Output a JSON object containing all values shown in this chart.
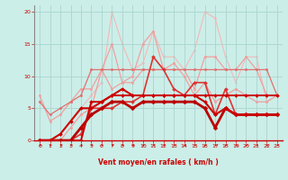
{
  "xlabel": "Vent moyen/en rafales ( km/h )",
  "bg_color": "#cceee8",
  "grid_color": "#aad4ce",
  "text_color": "#cc0000",
  "ylim": [
    0,
    21
  ],
  "xlim": [
    -0.5,
    23.5
  ],
  "yticks": [
    0,
    5,
    10,
    15,
    20
  ],
  "xticks": [
    0,
    1,
    2,
    3,
    4,
    5,
    6,
    7,
    8,
    9,
    10,
    11,
    12,
    13,
    14,
    15,
    16,
    17,
    18,
    19,
    20,
    21,
    22,
    23
  ],
  "series": [
    {
      "x": [
        0,
        1,
        2,
        3,
        4,
        5,
        6,
        7,
        8,
        9,
        10,
        11,
        12,
        13,
        14,
        15,
        16,
        17,
        18,
        19,
        20,
        21,
        22,
        23
      ],
      "y": [
        0,
        0,
        1,
        3,
        5,
        7,
        9,
        20,
        15,
        11,
        12,
        17,
        13,
        13,
        11,
        14,
        20,
        19,
        13,
        9,
        13,
        13,
        6,
        7
      ],
      "color": "#f4b8b8",
      "lw": 0.8,
      "marker": "o",
      "ms": 1.5,
      "zorder": 1
    },
    {
      "x": [
        0,
        1,
        2,
        3,
        4,
        5,
        6,
        7,
        8,
        9,
        10,
        11,
        12,
        13,
        14,
        15,
        16,
        17,
        18,
        19,
        20,
        21,
        22,
        23
      ],
      "y": [
        0,
        0,
        0,
        2,
        4,
        5,
        11,
        15,
        9,
        10,
        15,
        17,
        11,
        12,
        10,
        7,
        9,
        6,
        7,
        8,
        7,
        6,
        6,
        7
      ],
      "color": "#f0a0a0",
      "lw": 0.9,
      "marker": "o",
      "ms": 1.8,
      "zorder": 2
    },
    {
      "x": [
        0,
        1,
        2,
        3,
        4,
        5,
        6,
        7,
        8,
        9,
        10,
        11,
        12,
        13,
        14,
        15,
        16,
        17,
        18,
        19,
        20,
        21,
        22,
        23
      ],
      "y": [
        7,
        3,
        4,
        6,
        8,
        8,
        11,
        8,
        9,
        9,
        11,
        11,
        11,
        11,
        11,
        8,
        13,
        13,
        11,
        11,
        13,
        11,
        7,
        7
      ],
      "color": "#f0a0a0",
      "lw": 0.9,
      "marker": "o",
      "ms": 1.8,
      "zorder": 3
    },
    {
      "x": [
        0,
        1,
        2,
        3,
        4,
        5,
        6,
        7,
        8,
        9,
        10,
        11,
        12,
        13,
        14,
        15,
        16,
        17,
        18,
        19,
        20,
        21,
        22,
        23
      ],
      "y": [
        6,
        4,
        5,
        6,
        7,
        11,
        11,
        11,
        11,
        11,
        11,
        11,
        11,
        11,
        11,
        11,
        11,
        11,
        11,
        11,
        11,
        11,
        11,
        7
      ],
      "color": "#e07070",
      "lw": 0.9,
      "marker": "o",
      "ms": 1.8,
      "zorder": 4
    },
    {
      "x": [
        0,
        1,
        2,
        3,
        4,
        5,
        6,
        7,
        8,
        9,
        10,
        11,
        12,
        13,
        14,
        15,
        16,
        17,
        18,
        19,
        20,
        21,
        22,
        23
      ],
      "y": [
        0,
        0,
        0,
        0,
        1,
        5,
        5,
        5,
        6,
        6,
        7,
        13,
        11,
        8,
        7,
        9,
        9,
        4,
        8,
        4,
        4,
        4,
        4,
        4
      ],
      "color": "#dd3333",
      "lw": 1.2,
      "marker": "D",
      "ms": 2.0,
      "zorder": 5
    },
    {
      "x": [
        0,
        1,
        2,
        3,
        4,
        5,
        6,
        7,
        8,
        9,
        10,
        11,
        12,
        13,
        14,
        15,
        16,
        17,
        18,
        19,
        20,
        21,
        22,
        23
      ],
      "y": [
        0,
        0,
        0,
        0,
        0,
        6,
        6,
        7,
        7,
        7,
        7,
        7,
        7,
        7,
        7,
        7,
        7,
        7,
        7,
        7,
        7,
        7,
        7,
        7
      ],
      "color": "#cc0000",
      "lw": 1.4,
      "marker": "D",
      "ms": 2.0,
      "zorder": 6
    },
    {
      "x": [
        0,
        1,
        2,
        3,
        4,
        5,
        6,
        7,
        8,
        9,
        10,
        11,
        12,
        13,
        14,
        15,
        16,
        17,
        18,
        19,
        20,
        21,
        22,
        23
      ],
      "y": [
        0,
        0,
        0,
        0,
        2,
        4,
        5,
        6,
        6,
        5,
        6,
        6,
        6,
        6,
        6,
        6,
        5,
        2,
        5,
        4,
        4,
        4,
        4,
        4
      ],
      "color": "#bb0000",
      "lw": 2.0,
      "marker": "D",
      "ms": 2.5,
      "zorder": 7
    },
    {
      "x": [
        0,
        1,
        2,
        3,
        4,
        5,
        6,
        7,
        8,
        9,
        10,
        11,
        12,
        13,
        14,
        15,
        16,
        17,
        18,
        19,
        20,
        21,
        22,
        23
      ],
      "y": [
        0,
        0,
        1,
        3,
        5,
        5,
        6,
        7,
        8,
        7,
        7,
        7,
        7,
        7,
        7,
        7,
        6,
        4,
        5,
        4,
        4,
        4,
        4,
        4
      ],
      "color": "#cc0000",
      "lw": 1.5,
      "marker": "D",
      "ms": 2.0,
      "zorder": 8
    }
  ]
}
